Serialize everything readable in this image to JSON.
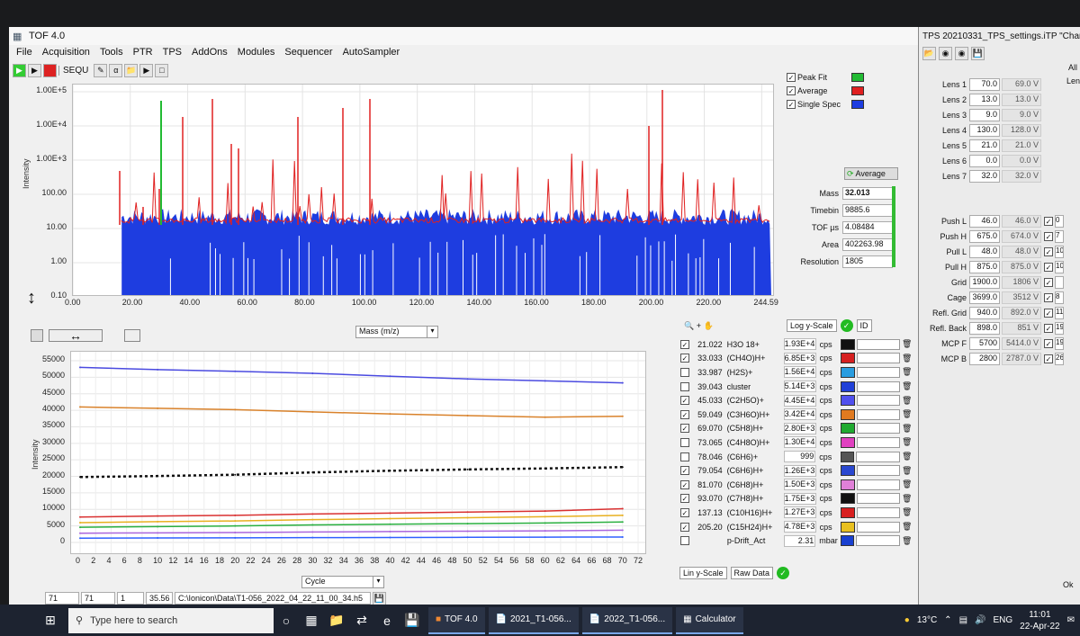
{
  "app": {
    "title": "TOF 4.0"
  },
  "menu": [
    "File",
    "Acquisition",
    "Tools",
    "PTR",
    "TPS",
    "AddOns",
    "Modules",
    "Sequencer",
    "AutoSampler"
  ],
  "toolbar": {
    "sequ": "SEQU"
  },
  "spectrum": {
    "ylabel": "Intensity",
    "yticks": [
      "1.00E+5",
      "1.00E+4",
      "1.00E+3",
      "100.00",
      "10.00",
      "1.00",
      "0.10"
    ],
    "xticks": [
      "0.00",
      "20.00",
      "40.00",
      "60.00",
      "80.00",
      "100.00",
      "120.00",
      "140.00",
      "160.00",
      "180.00",
      "200.00",
      "220.00",
      "244.59"
    ],
    "xaxis_select": "Mass (m/z)",
    "legend": [
      {
        "label": "Peak Fit",
        "color": "#22bb33",
        "checked": true
      },
      {
        "label": "Average",
        "color": "#e02020",
        "checked": true
      },
      {
        "label": "Single Spec",
        "color": "#1e3de0",
        "checked": true
      }
    ]
  },
  "peak": {
    "avg_button": "Average",
    "rows": [
      {
        "label": "Mass",
        "value": "32.013"
      },
      {
        "label": "Timebin",
        "value": "9885.6"
      },
      {
        "label": "TOF µs",
        "value": "4.08484"
      },
      {
        "label": "Area",
        "value": "402263.98"
      },
      {
        "label": "Resolution",
        "value": "1805"
      }
    ]
  },
  "scale": {
    "y_scale": "Log y-Scale",
    "id_label": "ID",
    "lin_scale": "Lin y-Scale",
    "raw_data": "Raw Data"
  },
  "chart_data": {
    "type": "line",
    "ylabel": "Intensity",
    "xlabel": "",
    "xlim": [
      0,
      72
    ],
    "ylim": [
      0,
      55000
    ],
    "yticks": [
      "55000",
      "50000",
      "45000",
      "40000",
      "35000",
      "30000",
      "25000",
      "20000",
      "15000",
      "10000",
      "5000",
      "0"
    ],
    "xticks": [
      "0",
      "2",
      "4",
      "6",
      "8",
      "10",
      "12",
      "14",
      "16",
      "18",
      "20",
      "22",
      "24",
      "26",
      "28",
      "30",
      "32",
      "34",
      "36",
      "38",
      "40",
      "42",
      "44",
      "46",
      "48",
      "50",
      "52",
      "54",
      "56",
      "58",
      "60",
      "62",
      "64",
      "66",
      "68",
      "70",
      "72"
    ],
    "x": [
      0,
      10,
      20,
      30,
      40,
      50,
      60,
      70
    ],
    "series": [
      {
        "color": "#4a4ae0",
        "values": [
          53000,
          52300,
          51800,
          51200,
          50300,
          49500,
          48900,
          48300
        ]
      },
      {
        "color": "#d9822b",
        "values": [
          41000,
          40600,
          40200,
          39500,
          38900,
          38400,
          37900,
          38200
        ]
      },
      {
        "color": "#111111",
        "values": [
          19800,
          20100,
          20500,
          21200,
          21700,
          22100,
          22400,
          22800
        ]
      },
      {
        "color": "#d93030",
        "values": [
          7700,
          8000,
          8200,
          8600,
          8900,
          9200,
          9500,
          10200
        ]
      },
      {
        "color": "#e8b020",
        "values": [
          6000,
          6300,
          6500,
          6900,
          7200,
          7500,
          7800,
          8200
        ]
      },
      {
        "color": "#2ab040",
        "values": [
          4600,
          4800,
          5000,
          5300,
          5500,
          5700,
          5900,
          6200
        ]
      },
      {
        "color": "#aa66dd",
        "values": [
          2800,
          2900,
          3000,
          3150,
          3300,
          3400,
          3500,
          3700
        ]
      },
      {
        "color": "#3060ff",
        "values": [
          1300,
          1350,
          1400,
          1450,
          1500,
          1550,
          1600,
          1650
        ]
      }
    ],
    "x_select": "Cycle"
  },
  "masslist": [
    {
      "mass": "21.022",
      "name": "H3O 18+",
      "value": "1.93E+4",
      "unit": "cps",
      "color": "#111111",
      "checked": true
    },
    {
      "mass": "33.033",
      "name": "(CH4O)H+",
      "value": "6.85E+3",
      "unit": "cps",
      "color": "#d62020",
      "checked": true
    },
    {
      "mass": "33.987",
      "name": "(H2S)+",
      "value": "1.56E+4",
      "unit": "cps",
      "color": "#2a9de0",
      "checked": false
    },
    {
      "mass": "39.043",
      "name": "cluster",
      "value": "5.14E+3",
      "unit": "cps",
      "color": "#2040d8",
      "checked": false
    },
    {
      "mass": "45.033",
      "name": "(C2H5O)+",
      "value": "4.45E+4",
      "unit": "cps",
      "color": "#5050ee",
      "checked": true
    },
    {
      "mass": "59.049",
      "name": "(C3H6O)H+",
      "value": "3.42E+4",
      "unit": "cps",
      "color": "#e07a20",
      "checked": true
    },
    {
      "mass": "69.070",
      "name": "(C5H8)H+",
      "value": "2.80E+3",
      "unit": "cps",
      "color": "#20aa30",
      "checked": true
    },
    {
      "mass": "73.065",
      "name": "(C4H8O)H+",
      "value": "1.30E+4",
      "unit": "cps",
      "color": "#e040c0",
      "checked": false
    },
    {
      "mass": "78.046",
      "name": "(C6H6)+",
      "value": "999",
      "unit": "cps",
      "color": "#555555",
      "checked": false
    },
    {
      "mass": "79.054",
      "name": "(C6H6)H+",
      "value": "1.26E+3",
      "unit": "cps",
      "color": "#2a48d0",
      "checked": true
    },
    {
      "mass": "81.070",
      "name": "(C6H8)H+",
      "value": "1.50E+3",
      "unit": "cps",
      "color": "#e080d8",
      "checked": true
    },
    {
      "mass": "93.070",
      "name": "(C7H8)H+",
      "value": "1.75E+3",
      "unit": "cps",
      "color": "#111111",
      "checked": true
    },
    {
      "mass": "137.13",
      "name": "(C10H16)H+",
      "value": "1.27E+3",
      "unit": "cps",
      "color": "#d82020",
      "checked": true
    },
    {
      "mass": "205.20",
      "name": "(C15H24)H+",
      "value": "4.78E+3",
      "unit": "cps",
      "color": "#e8c020",
      "checked": true
    },
    {
      "mass": "",
      "name": "p-Drift_Act",
      "value": "2.31",
      "unit": "mbar",
      "color": "#1840d0",
      "checked": false
    }
  ],
  "status": {
    "f1": "71",
    "f2": "71",
    "f3": "1",
    "f4": "35.56",
    "path": "C:\\Ionicon\\Data\\T1-056_2022_04_22_11_00_34.h5"
  },
  "tps": {
    "title": "TPS  20210331_TPS_settings.iTP  \"Chan",
    "all": "All",
    "lens": "Lens",
    "rows": [
      {
        "label": "Lens 1",
        "set": "70.0",
        "act": "69.0 V"
      },
      {
        "label": "Lens 2",
        "set": "13.0",
        "act": "13.0 V"
      },
      {
        "label": "Lens 3",
        "set": "9.0",
        "act": "9.0 V"
      },
      {
        "label": "Lens 4",
        "set": "130.0",
        "act": "128.0 V"
      },
      {
        "label": "Lens 5",
        "set": "21.0",
        "act": "21.0 V"
      },
      {
        "label": "Lens 6",
        "set": "0.0",
        "act": "0.0 V"
      },
      {
        "label": "Lens 7",
        "set": "32.0",
        "act": "32.0 V"
      },
      {
        "label": "Push L",
        "set": "46.0",
        "act": "46.0 V",
        "extra": "0"
      },
      {
        "label": "Push H",
        "set": "675.0",
        "act": "674.0 V",
        "extra": "7"
      },
      {
        "label": "Pull  L",
        "set": "48.0",
        "act": "48.0 V",
        "extra": "10"
      },
      {
        "label": "Pull  H",
        "set": "875.0",
        "act": "875.0 V",
        "extra": "10"
      },
      {
        "label": "Grid",
        "set": "1900.0",
        "act": "1806 V",
        "extra": ""
      },
      {
        "label": "Cage",
        "set": "3699.0",
        "act": "3512 V",
        "extra": "8"
      },
      {
        "label": "Refl. Grid",
        "set": "940.0",
        "act": "892.0 V",
        "extra": "11"
      },
      {
        "label": "Refl. Back",
        "set": "898.0",
        "act": "851 V",
        "extra": "19"
      },
      {
        "label": "MCP F",
        "set": "5700",
        "act": "5414.0 V",
        "extra": "19"
      },
      {
        "label": "MCP B",
        "set": "2800",
        "act": "2787.0 V",
        "extra": "265"
      }
    ],
    "ok": "Ok"
  },
  "taskbar": {
    "search": "Type here to search",
    "apps": [
      "TOF 4.0",
      "2021_T1-056...",
      "2022_T1-056...",
      "Calculator"
    ],
    "temp": "13°C",
    "lang": "ENG",
    "time": "11:01",
    "date": "22-Apr-22"
  }
}
